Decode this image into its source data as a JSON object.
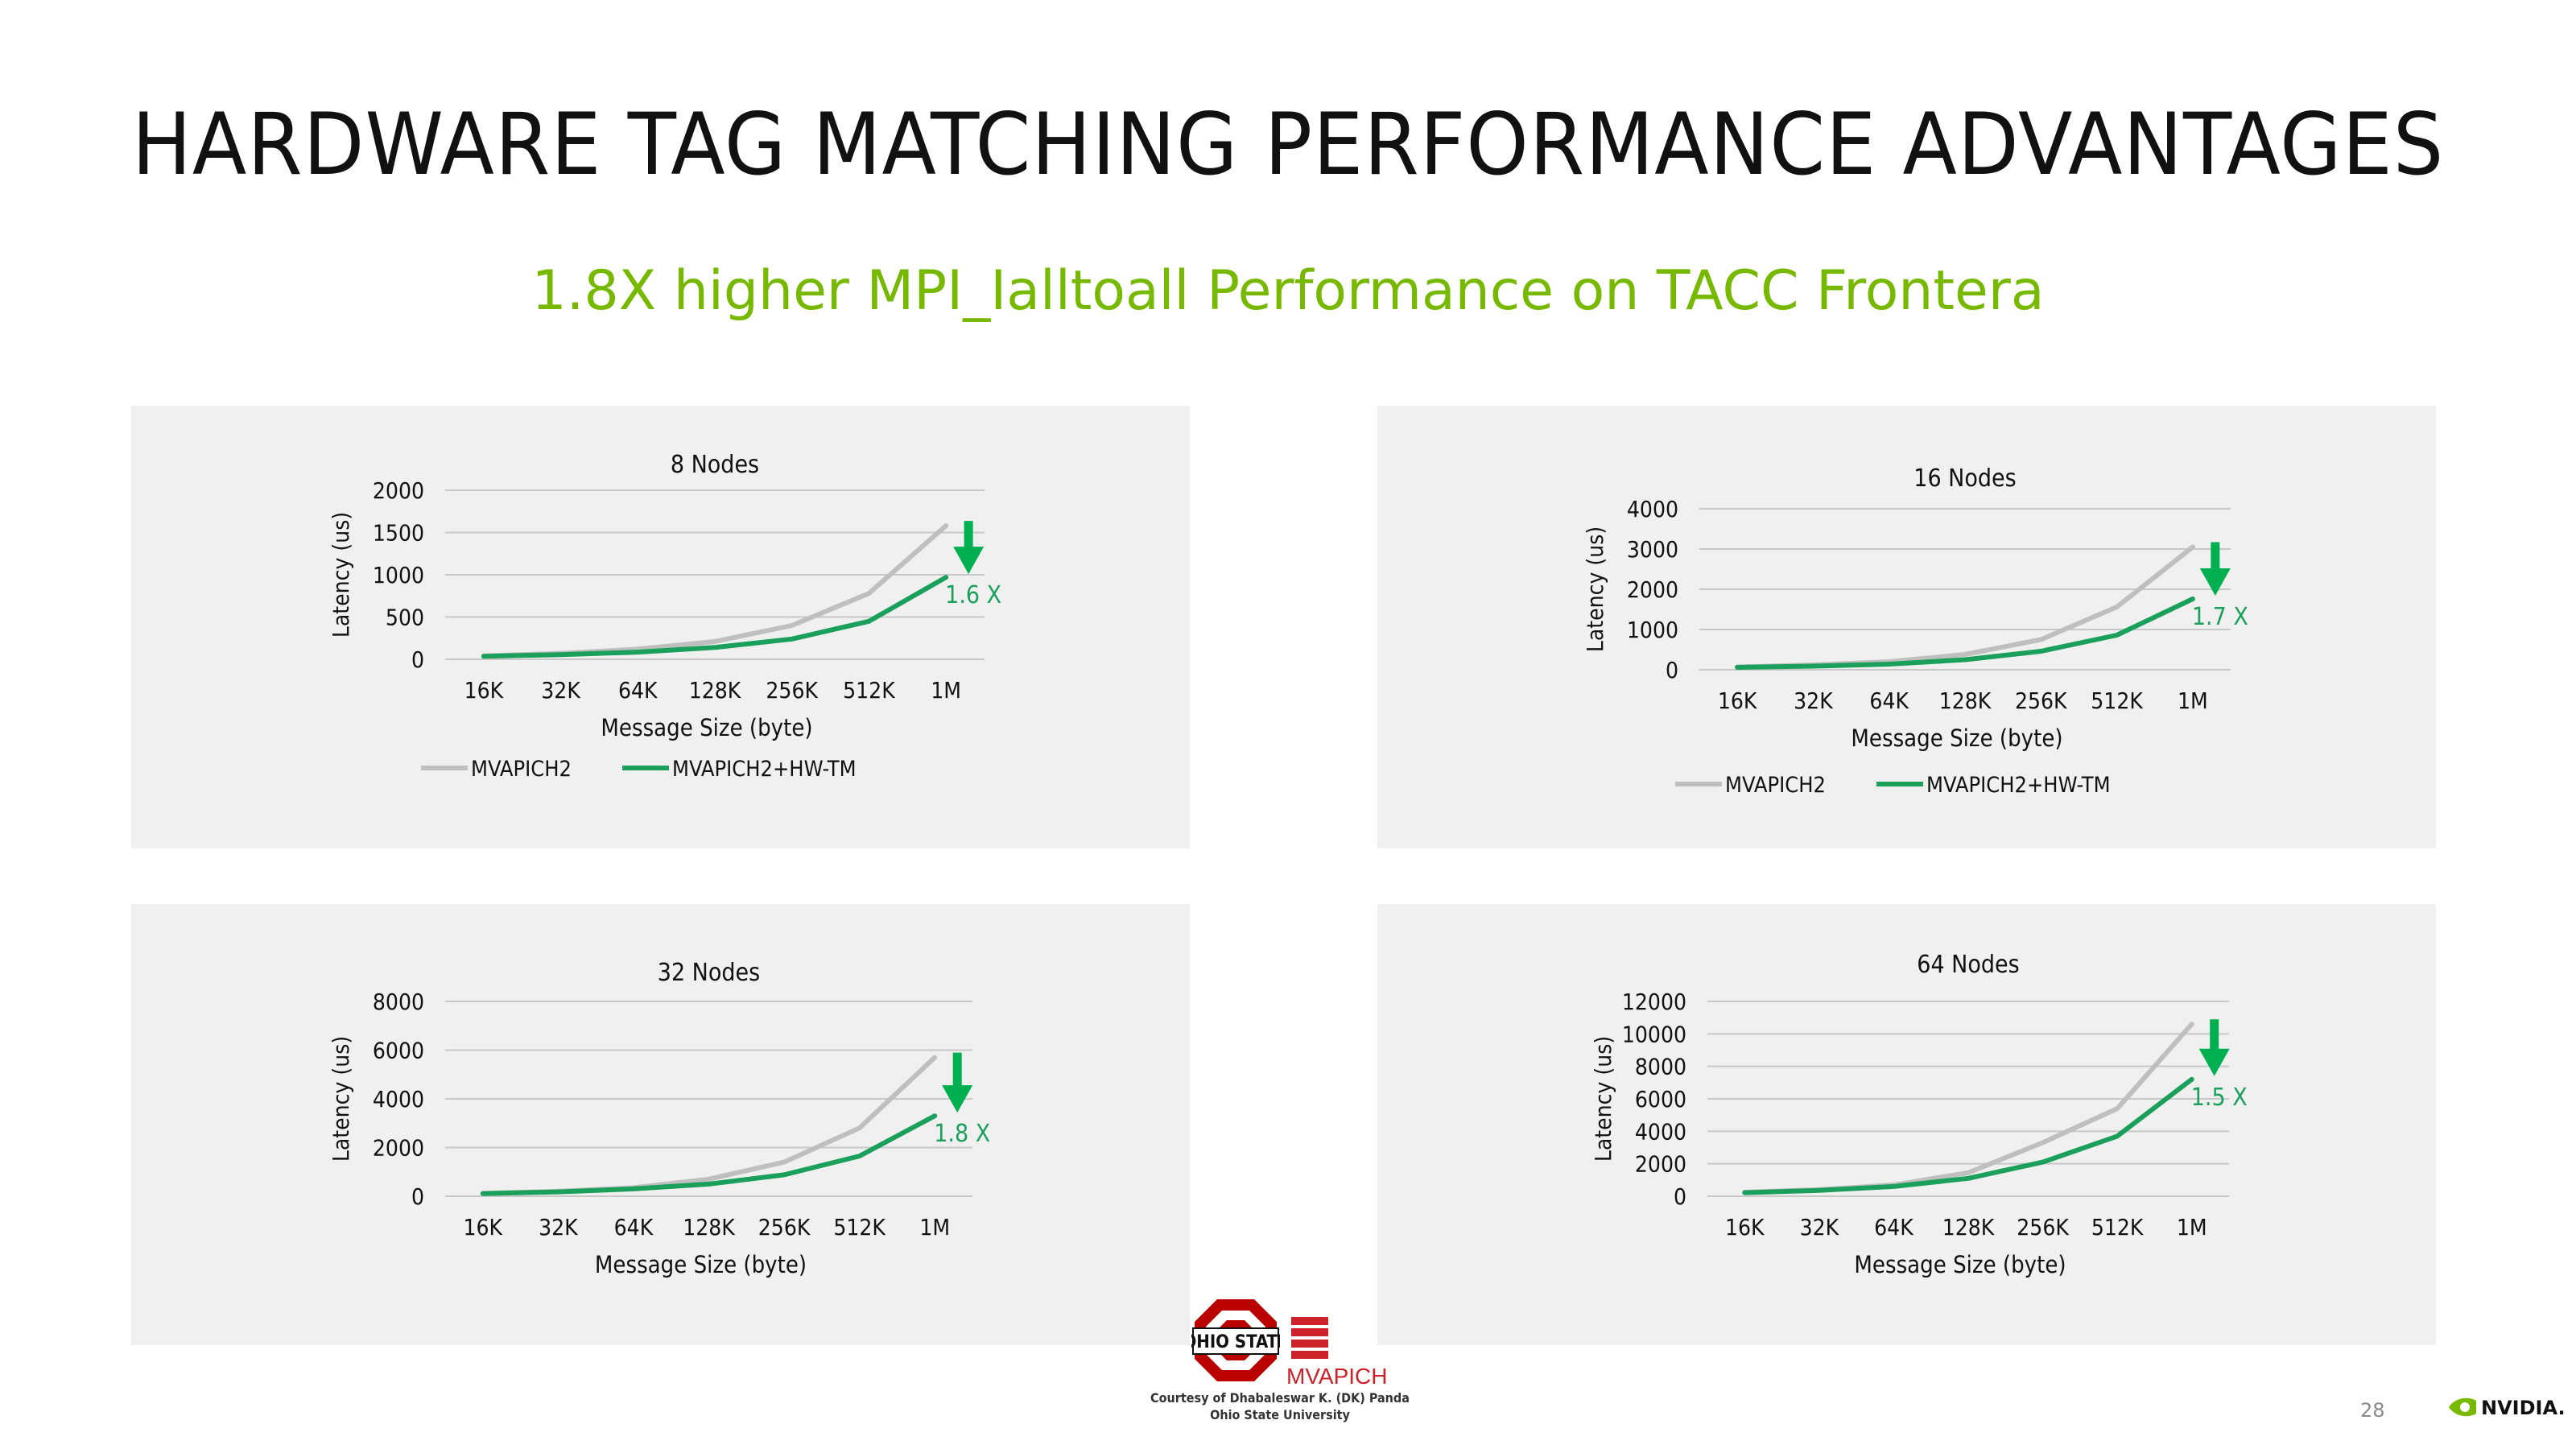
{
  "slide": {
    "title": "HARDWARE TAG MATCHING PERFORMANCE ADVANTAGES",
    "subtitle": "1.8X higher MPI_Ialltoall Performance on TACC Frontera",
    "page_number": "28",
    "credit_line1": "Courtesy of Dhabaleswar K. (DK) Panda",
    "credit_line2": "Ohio State University",
    "osu_logo_text": "OHIO STATE",
    "mvapich_logo_text": "MVAPICH",
    "nvidia_logo_text": "NVIDIA.",
    "accent_color": "#76b900"
  },
  "colors": {
    "mvapich2": "#bfbfbf",
    "hw_tm": "#1aa05a",
    "arrow": "#00b050",
    "annotation": "#1aa05a"
  },
  "chart_data": [
    {
      "type": "line",
      "title": "8 Nodes",
      "xlabel": "Message Size (byte)",
      "ylabel": "Latency (us)",
      "categories": [
        "16K",
        "32K",
        "64K",
        "128K",
        "256K",
        "512K",
        "1M"
      ],
      "ylim": [
        0,
        2000
      ],
      "yticks": [
        "0",
        "500",
        "1000",
        "1500",
        "2000"
      ],
      "series": [
        {
          "name": "MVAPICH2",
          "values": [
            40,
            70,
            120,
            210,
            400,
            780,
            1580
          ]
        },
        {
          "name": "MVAPICH2+HW-TM",
          "values": [
            35,
            55,
            85,
            140,
            240,
            450,
            970
          ]
        }
      ],
      "annotation": "1.6 X",
      "grid": true,
      "legend": "bottom"
    },
    {
      "type": "line",
      "title": "16 Nodes",
      "xlabel": "Message Size  (byte)",
      "ylabel": "Latency (us)",
      "categories": [
        "16K",
        "32K",
        "64K",
        "128K",
        "256K",
        "512K",
        "1M"
      ],
      "ylim": [
        0,
        4000
      ],
      "yticks": [
        "0",
        "1000",
        "2000",
        "3000",
        "4000"
      ],
      "series": [
        {
          "name": "MVAPICH2",
          "values": [
            70,
            120,
            200,
            380,
            750,
            1560,
            3050
          ]
        },
        {
          "name": "MVAPICH2+HW-TM",
          "values": [
            60,
            90,
            140,
            250,
            460,
            860,
            1760
          ]
        }
      ],
      "annotation": "1.7 X",
      "grid": true,
      "legend": "bottom"
    },
    {
      "type": "line",
      "title": "32 Nodes",
      "xlabel": "Message Size (byte)",
      "ylabel": "Latency (us)",
      "categories": [
        "16K",
        "32K",
        "64K",
        "128K",
        "256K",
        "512K",
        "1M"
      ],
      "ylim": [
        0,
        8000
      ],
      "yticks": [
        "0",
        "2000",
        "4000",
        "6000",
        "8000"
      ],
      "series": [
        {
          "name": "MVAPICH2",
          "values": [
            120,
            200,
            350,
            700,
            1400,
            2800,
            5700
          ]
        },
        {
          "name": "MVAPICH2+HW-TM",
          "values": [
            110,
            180,
            300,
            500,
            880,
            1650,
            3300
          ]
        }
      ],
      "annotation": "1.8 X",
      "grid": true,
      "legend": "none"
    },
    {
      "type": "line",
      "title": "64 Nodes",
      "xlabel": "Message Size  (byte)",
      "ylabel": "Latency (us)",
      "categories": [
        "16K",
        "32K",
        "64K",
        "128K",
        "256K",
        "512K",
        "1M"
      ],
      "ylim": [
        0,
        12000
      ],
      "yticks": [
        "0",
        "2000",
        "4000",
        "6000",
        "8000",
        "10000",
        "12000"
      ],
      "series": [
        {
          "name": "MVAPICH2",
          "values": [
            250,
            400,
            700,
            1450,
            3300,
            5400,
            10600
          ]
        },
        {
          "name": "MVAPICH2+HW-TM",
          "values": [
            220,
            360,
            600,
            1100,
            2100,
            3700,
            7200
          ]
        }
      ],
      "annotation": "1.5 X",
      "grid": true,
      "legend": "none"
    }
  ]
}
